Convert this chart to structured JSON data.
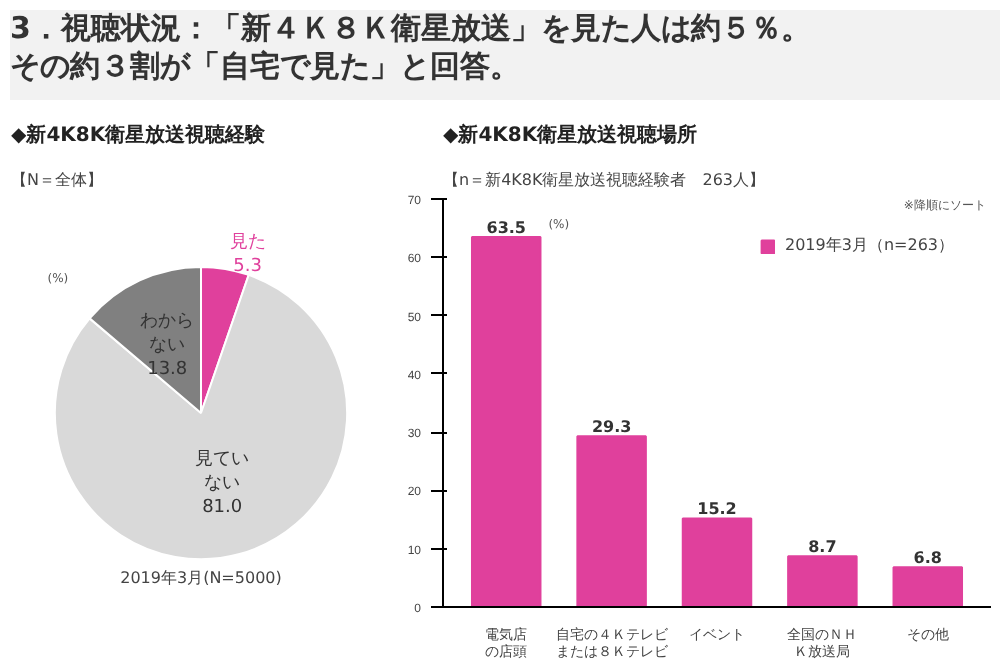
{
  "chart_data": [
    {
      "type": "pie",
      "title": "◆新4K8K衛星放送視聴経験",
      "subtitle": "【N＝全体】",
      "annotations": [
        "3．視聴状況：「新４Ｋ８Ｋ衛星放送」を見た人は約５％。",
        "その約３割が「自宅で見た」と回答。",
        "(%)",
        "2019年3月(N=5000)"
      ],
      "categories": [
        "見た",
        "見ていない",
        "わからない"
      ],
      "values": [
        5.3,
        81.0,
        13.8
      ],
      "colors": [
        "#e0409c",
        "#d9d9d9",
        "#808080"
      ],
      "value_labels": [
        "5.3",
        "81.0",
        "13.8"
      ]
    },
    {
      "type": "bar",
      "title": "◆新4K8K衛星放送視聴場所",
      "subtitle": "【n＝新4K8K衛星放送視聴経験者　263人】",
      "annotations": [
        "※降順にソート",
        "(%)"
      ],
      "categories": [
        "電気店の店頭",
        "自宅の４Ｋテレビまたは８Ｋテレビ",
        "イベント",
        "全国のＮＨＫ放送局",
        "その他"
      ],
      "series": [
        {
          "name": "2019年3月（n=263）",
          "color": "#e0409c",
          "values": [
            63.5,
            29.3,
            15.2,
            8.7,
            6.8
          ]
        }
      ],
      "ylim": [
        0,
        70
      ],
      "yticks": [
        0,
        10,
        20,
        30,
        40,
        50,
        60,
        70
      ],
      "grid": false,
      "legend": "top right",
      "data_labels": true
    }
  ]
}
